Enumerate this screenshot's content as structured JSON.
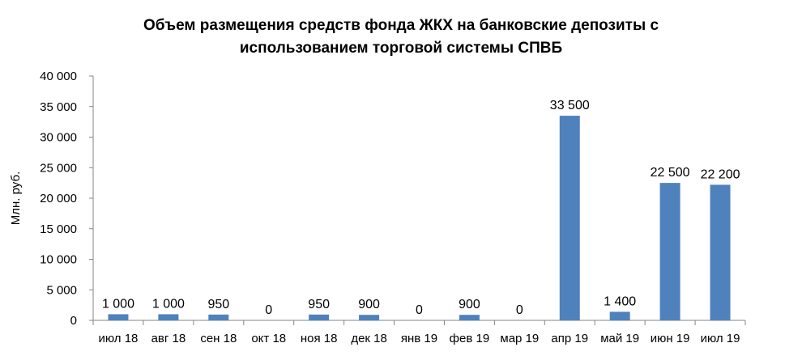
{
  "chart_data": {
    "type": "bar",
    "title_line1": "Объем размещения средств фонда ЖКХ на банковские депозиты с",
    "title_line2": "использованием торговой  системы СПВБ",
    "xlabel": "",
    "ylabel": "Млн. руб.",
    "categories": [
      "июл 18",
      "авг 18",
      "сен 18",
      "окт 18",
      "ноя 18",
      "дек 18",
      "янв 19",
      "фев 19",
      "мар 19",
      "апр 19",
      "май 19",
      "июн 19",
      "июл 19"
    ],
    "values": [
      1000,
      1000,
      950,
      0,
      950,
      900,
      0,
      900,
      0,
      33500,
      1400,
      22500,
      22200
    ],
    "data_labels": [
      "1 000",
      "1 000",
      "950",
      "0",
      "950",
      "900",
      "0",
      "900",
      "0",
      "33 500",
      "1 400",
      "22 500",
      "22 200"
    ],
    "ylim": [
      0,
      40000
    ],
    "yticks": [
      0,
      5000,
      10000,
      15000,
      20000,
      25000,
      30000,
      35000,
      40000
    ],
    "ytick_labels": [
      "0",
      "5 000",
      "10 000",
      "15 000",
      "20 000",
      "25 000",
      "30 000",
      "35 000",
      "40 000"
    ],
    "grid": false,
    "legend": "none",
    "colors": {
      "bar": "#4F81BD",
      "axis": "#868686"
    }
  }
}
